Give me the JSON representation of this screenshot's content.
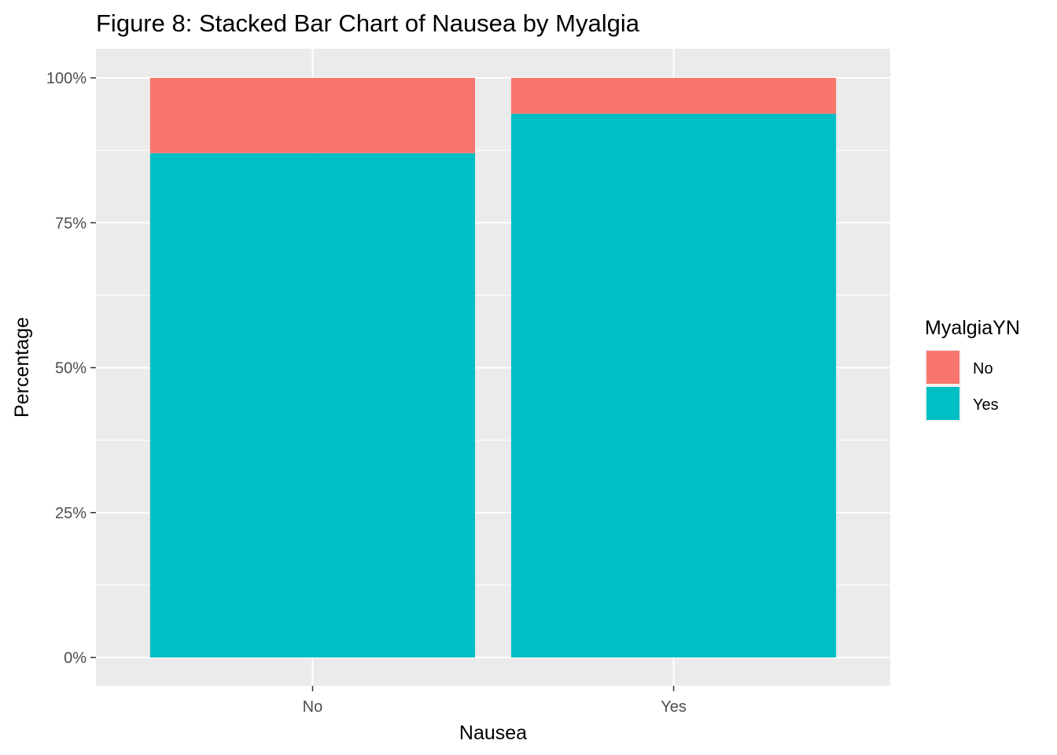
{
  "chart_data": {
    "type": "bar",
    "stacked": true,
    "title": "Figure 8: Stacked Bar Chart of Nausea by Myalgia",
    "xlabel": "Nausea",
    "ylabel": "Percentage",
    "categories": [
      "No",
      "Yes"
    ],
    "series": [
      {
        "name": "Yes",
        "values": [
          0.87,
          0.938
        ]
      },
      {
        "name": "No",
        "values": [
          0.13,
          0.062
        ]
      }
    ],
    "ylim": [
      0,
      1
    ],
    "yticks": [
      0,
      0.25,
      0.5,
      0.75,
      1.0
    ],
    "ytick_labels": [
      "0%",
      "25%",
      "50%",
      "75%",
      "100%"
    ],
    "legend": {
      "title": "MyalgiaYN",
      "entries": [
        "No",
        "Yes"
      ],
      "position": "right"
    },
    "grid": true,
    "colors": {
      "No": "#F8766D",
      "Yes": "#00BFC4",
      "panel": "#EBEBEB",
      "gridline": "#FFFFFF"
    }
  }
}
